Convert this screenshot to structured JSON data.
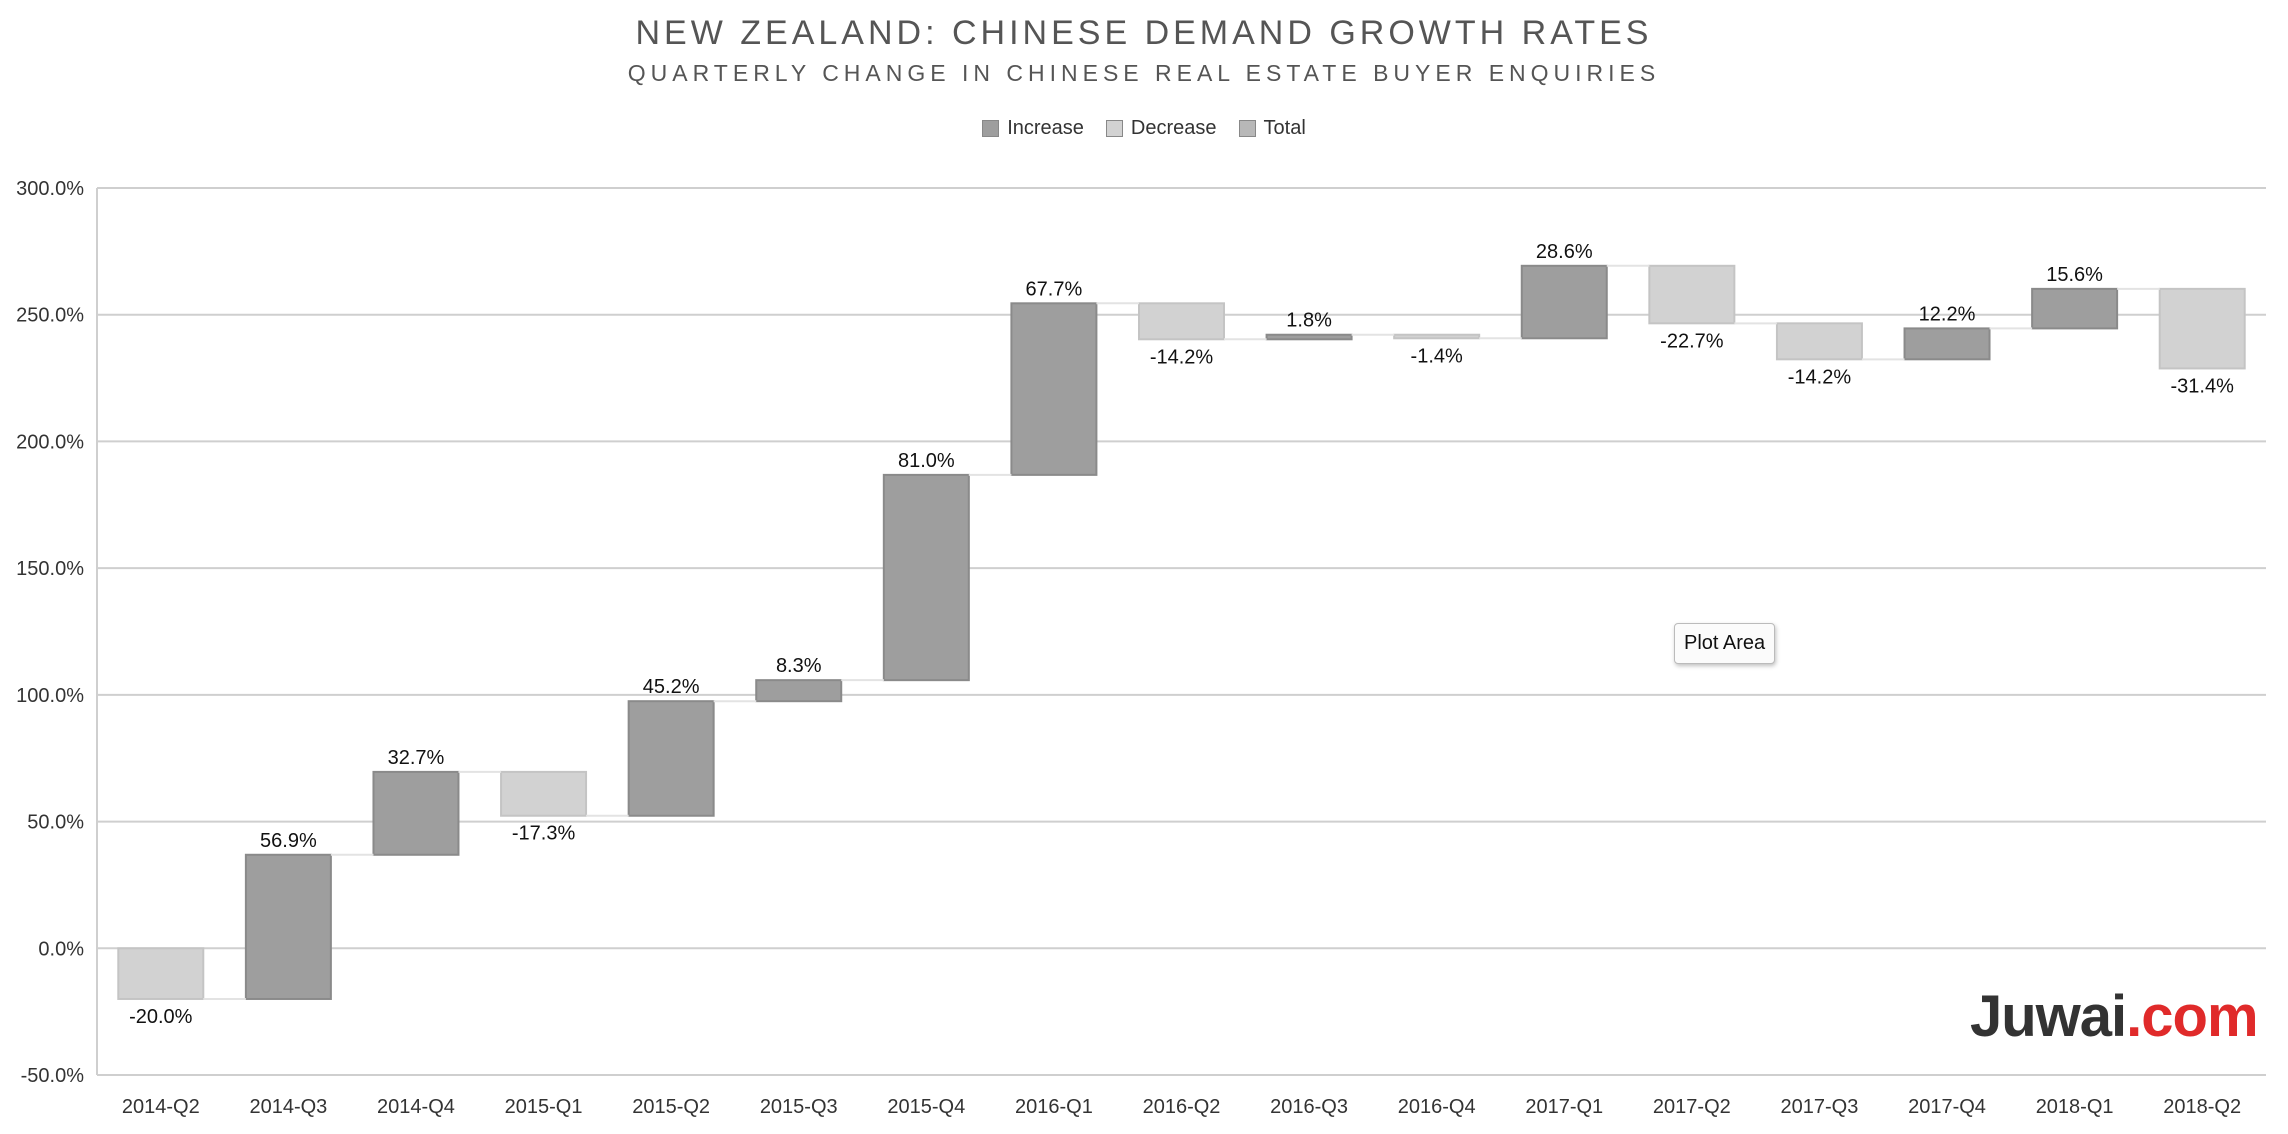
{
  "chart_data": {
    "type": "waterfall",
    "title": "NEW ZEALAND: CHINESE DEMAND GROWTH RATES",
    "subtitle": "QUARTERLY CHANGE IN CHINESE REAL ESTATE BUYER ENQUIRIES",
    "legend": {
      "position": "top",
      "entries": [
        {
          "name": "Increase",
          "color": "#9e9e9e"
        },
        {
          "name": "Decrease",
          "color": "#d2d2d2"
        },
        {
          "name": "Total",
          "color": "#b8b8b8"
        }
      ]
    },
    "ylim": [
      -50,
      300
    ],
    "yticks": [
      300,
      250,
      200,
      150,
      100,
      50,
      0,
      -50
    ],
    "ytick_labels": [
      "300.0%",
      "250.0%",
      "200.0%",
      "150.0%",
      "100.0%",
      "50.0%",
      "0.0%",
      "-50.0%"
    ],
    "grid": true,
    "categories": [
      "2014-Q2",
      "2014-Q3",
      "2014-Q4",
      "2015-Q1",
      "2015-Q2",
      "2015-Q3",
      "2015-Q4",
      "2016-Q1",
      "2016-Q2",
      "2016-Q3",
      "2016-Q4",
      "2017-Q1",
      "2017-Q2",
      "2017-Q3",
      "2017-Q4",
      "2018-Q1",
      "2018-Q2"
    ],
    "values": [
      -20.0,
      56.9,
      32.7,
      -17.3,
      45.2,
      8.3,
      81.0,
      67.7,
      -14.2,
      1.8,
      -1.4,
      28.6,
      -22.7,
      -14.2,
      12.2,
      15.6,
      -31.4
    ],
    "data_labels": [
      "-20.0%",
      "56.9%",
      "32.7%",
      "-17.3%",
      "45.2%",
      "8.3%",
      "81.0%",
      "67.7%",
      "-14.2%",
      "1.8%",
      "-1.4%",
      "28.6%",
      "-22.7%",
      "-14.2%",
      "12.2%",
      "15.6%",
      "-31.4%"
    ]
  },
  "tooltip": {
    "label": "Plot Area"
  },
  "brand": {
    "main": "Juwai",
    "tld": ".com"
  }
}
